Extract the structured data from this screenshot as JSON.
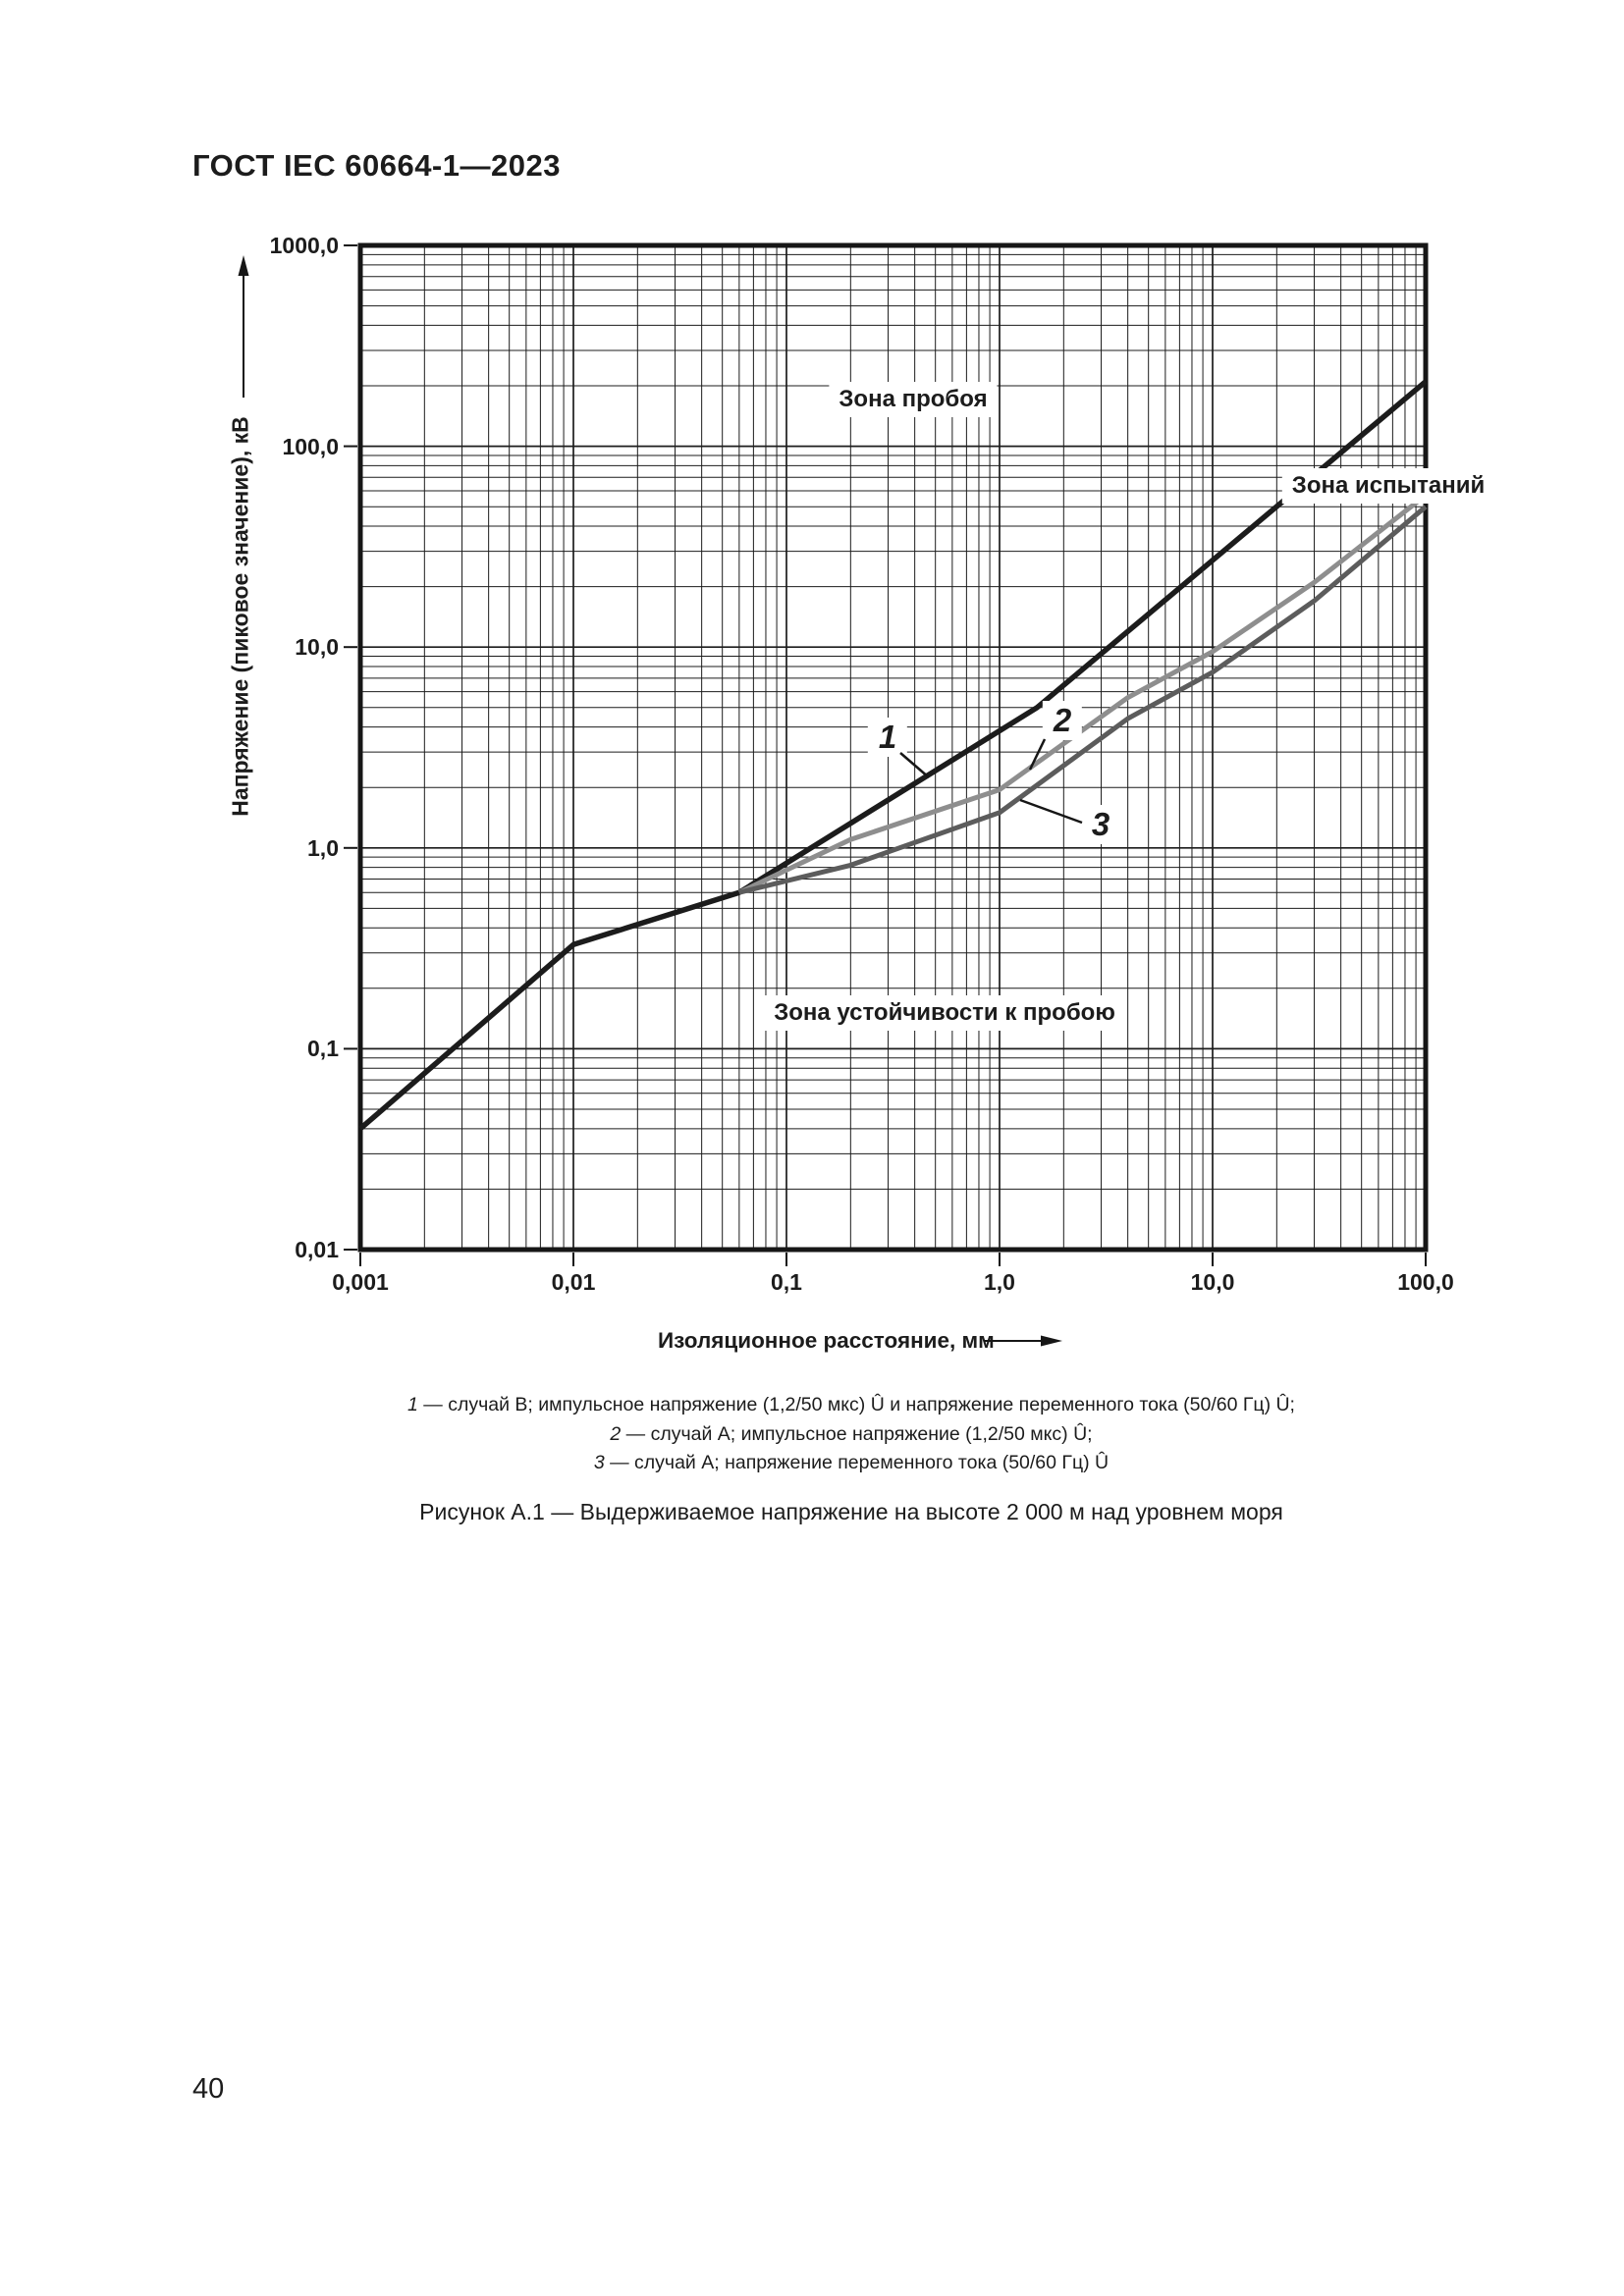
{
  "page": {
    "header": "ГОСТ IEC 60664-1—2023",
    "page_number": "40"
  },
  "chart_data": {
    "type": "line",
    "scale": "log-log",
    "grid": "log minor and major gridlines, both axes",
    "x_axis": {
      "title": "Изоляционное расстояние, мм",
      "min": 0.001,
      "max": 100,
      "tick_labels": [
        "0,001",
        "0,01",
        "0,1",
        "1,0",
        "10,0",
        "100,0"
      ],
      "tick_values": [
        0.001,
        0.01,
        0.1,
        1,
        10,
        100
      ]
    },
    "y_axis": {
      "title": "Напряжение (пиковое значение), кВ",
      "min": 0.01,
      "max": 1000,
      "tick_labels": [
        "1000,0",
        "100,0",
        "10,0",
        "1,0",
        "0,1",
        "0,01"
      ],
      "tick_values": [
        1000,
        100,
        10,
        1,
        0.1,
        0.01
      ]
    },
    "zones": {
      "breakdown": "Зона пробоя",
      "test": "Зона испытаний",
      "withstand": "Зона устойчивости к пробою"
    },
    "series": [
      {
        "name": "1",
        "color": "#1c1c1c",
        "width": 5.5,
        "points_mm_kv": [
          [
            0.001,
            0.04
          ],
          [
            0.01,
            0.33
          ],
          [
            0.06,
            0.6
          ],
          [
            1.5,
            5.0
          ],
          [
            100,
            210
          ]
        ]
      },
      {
        "name": "2",
        "color": "#8e8e8e",
        "width": 5,
        "points_mm_kv": [
          [
            0.06,
            0.6
          ],
          [
            0.2,
            1.1
          ],
          [
            1.0,
            1.95
          ],
          [
            4,
            5.6
          ],
          [
            10,
            9.5
          ],
          [
            30,
            21
          ],
          [
            100,
            57
          ]
        ]
      },
      {
        "name": "3",
        "color": "#5c5c5c",
        "width": 5,
        "points_mm_kv": [
          [
            0.06,
            0.6
          ],
          [
            0.2,
            0.82
          ],
          [
            1.0,
            1.5
          ],
          [
            4,
            4.4
          ],
          [
            10,
            7.5
          ],
          [
            30,
            17
          ],
          [
            100,
            50
          ]
        ]
      }
    ]
  },
  "legend": {
    "items": [
      {
        "num": "1",
        "text": "— случай В; импульсное напряжение (1,2/50 мкс) Û и напряжение переменного тока (50/60 Гц) Û;"
      },
      {
        "num": "2",
        "text": "— случай А; импульсное напряжение (1,2/50 мкс) Û;"
      },
      {
        "num": "3",
        "text": "— случай А; напряжение переменного тока (50/60 Гц) Û"
      }
    ]
  },
  "figure_caption": "Рисунок А.1 — Выдерживаемое напряжение на высоте 2 000 м над уровнем моря"
}
